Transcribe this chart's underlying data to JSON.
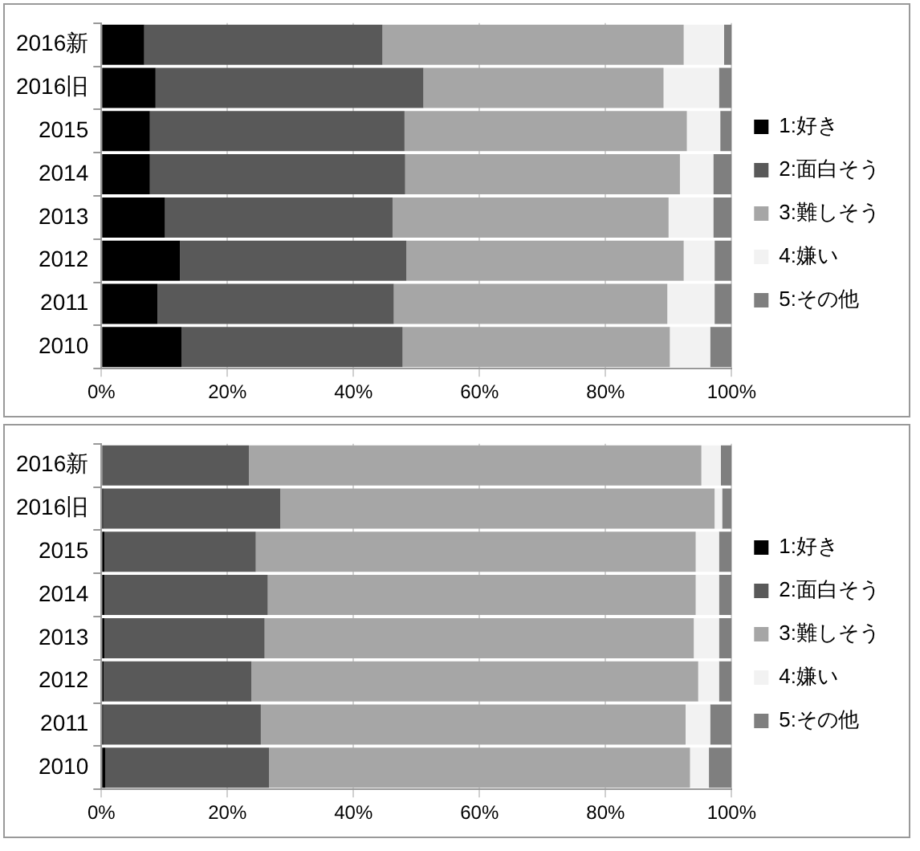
{
  "chart_data": [
    {
      "type": "bar",
      "orientation": "horizontal",
      "stacked": true,
      "categories": [
        "2016新",
        "2016旧",
        "2015",
        "2014",
        "2013",
        "2012",
        "2011",
        "2010"
      ],
      "series": [
        {
          "name": "1:好き",
          "color": "#000000",
          "values": [
            6.8,
            8.6,
            7.7,
            7.7,
            10.1,
            12.5,
            8.9,
            12.7
          ]
        },
        {
          "name": "2:面白そう",
          "color": "#595959",
          "values": [
            37.8,
            42.5,
            40.4,
            40.5,
            36.1,
            35.9,
            37.5,
            35.1
          ]
        },
        {
          "name": "3:難しそう",
          "color": "#a6a6a6",
          "values": [
            47.8,
            38.1,
            44.8,
            43.6,
            43.8,
            44.0,
            43.4,
            42.4
          ]
        },
        {
          "name": "4:嫌い",
          "color": "#f2f2f2",
          "values": [
            6.4,
            8.8,
            5.3,
            5.3,
            7.1,
            4.9,
            7.5,
            6.4
          ]
        },
        {
          "name": "5:その他",
          "color": "#7f7f7f",
          "values": [
            1.2,
            2.0,
            1.8,
            2.9,
            2.9,
            2.7,
            2.7,
            3.4
          ]
        }
      ],
      "xlim": [
        0,
        100
      ],
      "xticks": [
        {
          "value": 0,
          "label": "0%"
        },
        {
          "value": 20,
          "label": "20%"
        },
        {
          "value": 40,
          "label": "40%"
        },
        {
          "value": 60,
          "label": "60%"
        },
        {
          "value": 80,
          "label": "80%"
        },
        {
          "value": 100,
          "label": "100%"
        }
      ],
      "grid": "x",
      "legend": "right"
    },
    {
      "type": "bar",
      "orientation": "horizontal",
      "stacked": true,
      "categories": [
        "2016新",
        "2016旧",
        "2015",
        "2014",
        "2013",
        "2012",
        "2011",
        "2010"
      ],
      "series": [
        {
          "name": "1:好き",
          "color": "#000000",
          "values": [
            0,
            0.3,
            0.5,
            0.5,
            0.5,
            0.4,
            0.3,
            0.6
          ]
        },
        {
          "name": "2:面白そう",
          "color": "#595959",
          "values": [
            23.4,
            28.1,
            24.0,
            25.9,
            25.4,
            23.4,
            25.0,
            26.0
          ]
        },
        {
          "name": "3:難しそう",
          "color": "#a6a6a6",
          "values": [
            71.8,
            68.9,
            69.8,
            67.9,
            68.1,
            70.9,
            67.4,
            66.8
          ]
        },
        {
          "name": "4:嫌い",
          "color": "#f2f2f2",
          "values": [
            3.1,
            1.2,
            3.7,
            3.7,
            4.0,
            3.3,
            3.9,
            3.0
          ]
        },
        {
          "name": "5:その他",
          "color": "#7f7f7f",
          "values": [
            1.7,
            1.5,
            2.0,
            2.0,
            2.0,
            2.0,
            3.4,
            3.6
          ]
        }
      ],
      "xlim": [
        0,
        100
      ],
      "xticks": [
        {
          "value": 0,
          "label": "0%"
        },
        {
          "value": 20,
          "label": "20%"
        },
        {
          "value": 40,
          "label": "40%"
        },
        {
          "value": 60,
          "label": "60%"
        },
        {
          "value": 80,
          "label": "80%"
        },
        {
          "value": 100,
          "label": "100%"
        }
      ],
      "grid": "x",
      "legend": "right"
    }
  ]
}
